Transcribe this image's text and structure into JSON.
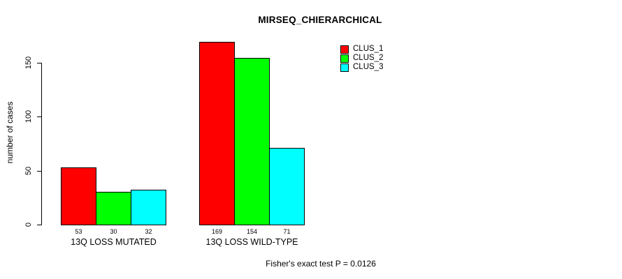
{
  "title": "MIRSEQ_CHIERARCHICAL",
  "annotation": "Fisher's exact test P = 0.0126",
  "colors": {
    "background": "#FFFFFF",
    "axis": "#000000",
    "text": "#000000",
    "clus_1": "#FF0000",
    "clus_2": "#00FF00",
    "clus_3": "#00FFFF"
  },
  "chart_data": {
    "type": "bar",
    "title": "MIRSEQ_CHIERARCHICAL",
    "xlabel": "",
    "ylabel": "number of cases",
    "categories": [
      "13Q LOSS MUTATED",
      "13Q LOSS WILD-TYPE"
    ],
    "series": [
      {
        "name": "CLUS_1",
        "color": "#FF0000",
        "values": [
          53,
          169
        ]
      },
      {
        "name": "CLUS_2",
        "color": "#00FF00",
        "values": [
          30,
          154
        ]
      },
      {
        "name": "CLUS_3",
        "color": "#00FFFF",
        "values": [
          32,
          71
        ]
      }
    ],
    "bar_value_labels": [
      [
        "53",
        "30",
        "32"
      ],
      [
        "169",
        "154",
        "71"
      ]
    ],
    "yticks": [
      0,
      50,
      100,
      150
    ],
    "ylim": [
      0,
      175
    ],
    "grid": false,
    "legend_position": "top-right",
    "legend_entries": [
      "CLUS_1",
      "CLUS_2",
      "CLUS_3"
    ],
    "annotation": "Fisher's exact test P = 0.0126"
  }
}
